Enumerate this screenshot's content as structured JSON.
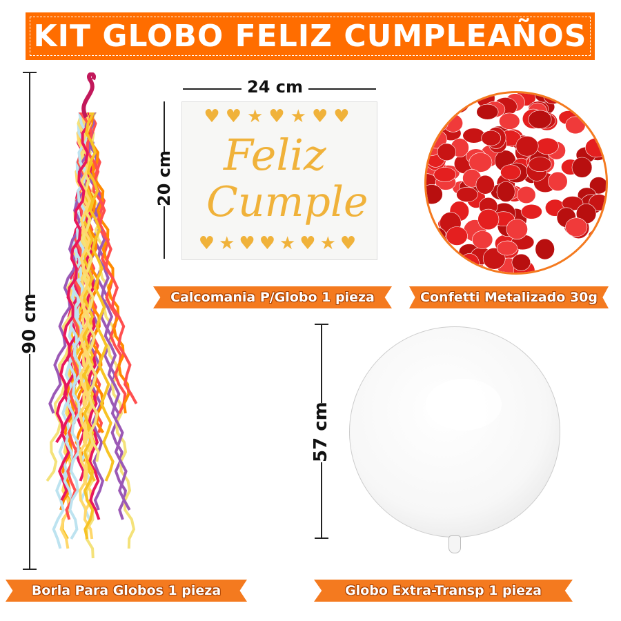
{
  "title": "KIT GLOBO FELIZ CUMPLEAÑOS",
  "colors": {
    "brand": "#ff6d00",
    "label": "#f47a1f",
    "sticker": "#f0b23a",
    "confetti": "#e41f1f"
  },
  "dimensions": {
    "tassel": "90 cm",
    "sheet_width": "24 cm",
    "sheet_height": "20 cm",
    "balloon": "57 cm"
  },
  "sticker_text": {
    "line1": "Feliz",
    "line2": "Cumple"
  },
  "labels": {
    "sticker": "Calcomania P/Globo  1 pieza",
    "confetti": "Confetti Metalizado 30g",
    "tassel": "Borla Para Globos  1 pieza",
    "balloon": "Globo Extra-Transp 1 pieza"
  }
}
